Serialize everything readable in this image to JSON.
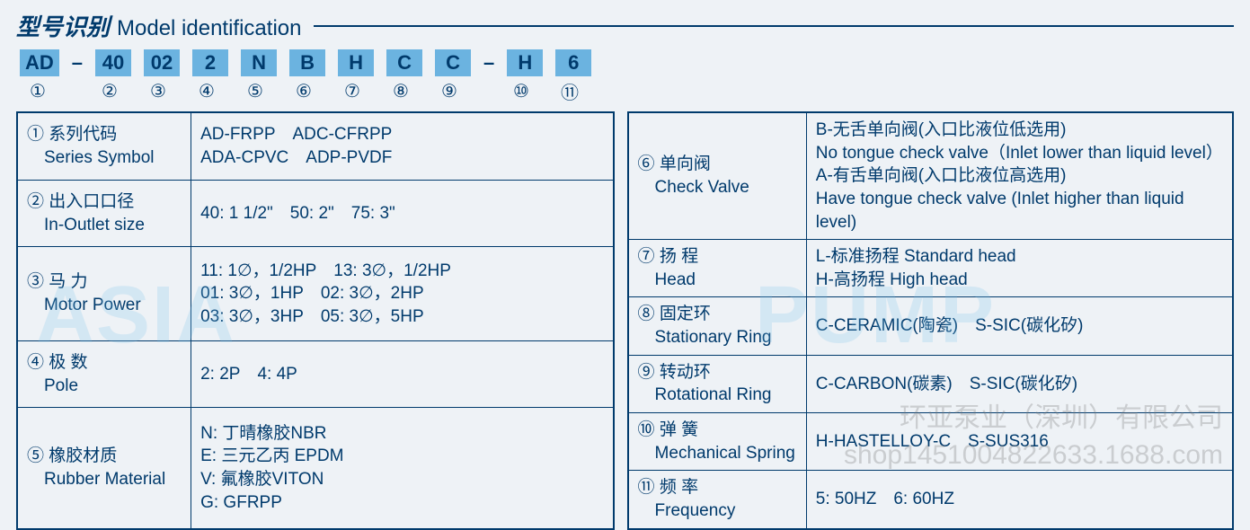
{
  "colors": {
    "text": "#003a6c",
    "box_bg": "#6bb3e0",
    "page_bg": "#eef2f6",
    "border": "#003a6c",
    "watermark_blue": "rgba(120,190,230,0.22)",
    "watermark_gray": "rgba(120,120,120,0.30)"
  },
  "typography": {
    "title_zh_size": 26,
    "title_en_size": 24,
    "code_box_size": 22,
    "num_size": 20,
    "cell_size": 19
  },
  "title": {
    "zh": "型号识别",
    "en": "Model identification"
  },
  "code_parts": [
    "AD",
    "–",
    "40",
    "02",
    "2",
    "N",
    "B",
    "H",
    "C",
    "C",
    "–",
    "H",
    "6"
  ],
  "code_numbers": [
    "①",
    "②",
    "③",
    "④",
    "⑤",
    "⑥",
    "⑦",
    "⑧",
    "⑨",
    "⑩",
    "⑪"
  ],
  "left_rows": [
    {
      "num": "①",
      "zh": "系列代码",
      "en": "Series Symbol",
      "val": "AD-FRPP ADC-CFRPP\nADA-CPVC ADP-PVDF"
    },
    {
      "num": "②",
      "zh": "出入口口径",
      "en": "In-Outlet size",
      "val": "40: 1 1/2\" 50: 2\" 75: 3\""
    },
    {
      "num": "③",
      "zh": "马 力",
      "en": "Motor Power",
      "val": "11: 1∅，1/2HP 13: 3∅，1/2HP\n01: 3∅，1HP 02: 3∅，2HP\n03: 3∅，3HP 05: 3∅，5HP"
    },
    {
      "num": "④",
      "zh": "极 数",
      "en": "Pole",
      "val": "2: 2P 4: 4P"
    },
    {
      "num": "⑤",
      "zh": "橡胶材质",
      "en": "Rubber Material",
      "val": "N: 丁晴橡胶NBR\nE: 三元乙丙 EPDM\nV: 氟橡胶VITON\nG: GFRPP"
    }
  ],
  "right_rows": [
    {
      "num": "⑥",
      "zh": "单向阀",
      "en": "Check Valve",
      "val": "B-无舌单向阀(入口比液位低选用)\nNo tongue check valve（Inlet lower than liquid level）\nA-有舌单向阀(入口比液位高选用)\nHave tongue check valve (Inlet higher than liquid level)"
    },
    {
      "num": "⑦",
      "zh": "扬 程",
      "en": "Head",
      "val": "L-标准扬程 Standard head\nH-高扬程 High head"
    },
    {
      "num": "⑧",
      "zh": "固定环",
      "en": "Stationary Ring",
      "val": "C-CERAMIC(陶瓷) S-SIC(碳化矽)"
    },
    {
      "num": "⑨",
      "zh": "转动环",
      "en": "Rotational Ring",
      "val": "C-CARBON(碳素) S-SIC(碳化矽)"
    },
    {
      "num": "⑩",
      "zh": "弹 簧",
      "en": "Mechanical Spring",
      "val": "H-HASTELLOY-C S-SUS316"
    },
    {
      "num": "⑪",
      "zh": "频 率",
      "en": "Frequency",
      "val": "5: 50HZ 6: 60HZ"
    }
  ],
  "watermarks": {
    "left": "ASIA",
    "right": "PUMP",
    "cn": "环亚泵业（深圳）有限公司",
    "shop": "shop1451004822633.1688.com"
  }
}
